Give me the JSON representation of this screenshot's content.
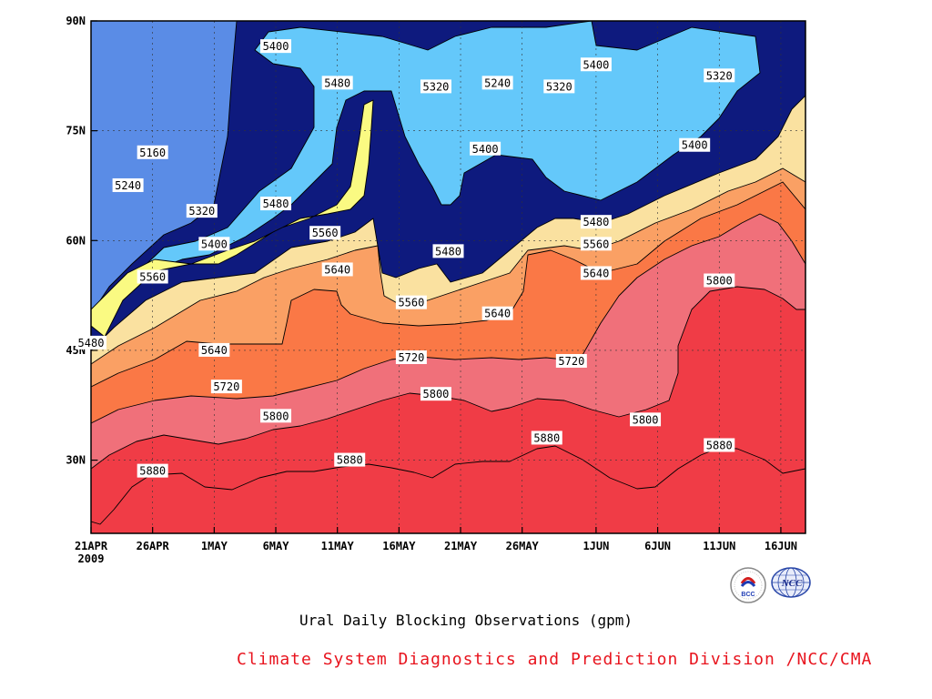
{
  "chart_data": {
    "type": "contour",
    "title": "Ural Daily Blocking Observations (gpm)",
    "credit": "Climate System Diagnostics and Prediction Division /NCC/CMA",
    "credit_color": "#e8141e",
    "x_axis": {
      "ticks": [
        "21APR",
        "26APR",
        "1MAY",
        "6MAY",
        "11MAY",
        "16MAY",
        "21MAY",
        "26MAY",
        "1JUN",
        "6JUN",
        "11JUN",
        "16JUN"
      ],
      "year_label": "2009",
      "start": "21APR 2009",
      "end": "18JUN 2009"
    },
    "y_axis": {
      "ticks": [
        "30N",
        "45N",
        "60N",
        "75N",
        "90N"
      ],
      "range": [
        "20N",
        "90N"
      ]
    },
    "grid": "dotted",
    "contour_levels": [
      5160,
      5240,
      5320,
      5400,
      5480,
      5560,
      5640,
      5720,
      5800,
      5880
    ],
    "fill_colors": {
      "<5160": "#0e1a7e",
      "5160-5240": "#1414e6",
      "5240-5320": "#4646e6",
      "5320-5400": "#5a8ce6",
      "5400-5480": "#64c8fa",
      "5480-5560": "#fafa82",
      "5560-5640": "#fae1a0",
      "5640-5720": "#faa064",
      "5720-5800": "#fa7846",
      "5800-5880": "#f0707a",
      ">5880": "#f03c46"
    },
    "contour_labels": [
      {
        "value": "5160",
        "date": "26APR",
        "lat": 72
      },
      {
        "value": "5240",
        "date": "24APR",
        "lat": 67.5
      },
      {
        "value": "5320",
        "date": "30APR",
        "lat": 64
      },
      {
        "value": "5400",
        "date": "1MAY",
        "lat": 59.5
      },
      {
        "value": "5480",
        "date": "6MAY",
        "lat": 65
      },
      {
        "value": "5560",
        "date": "10MAY",
        "lat": 61
      },
      {
        "value": "5640",
        "date": "11MAY",
        "lat": 56
      },
      {
        "value": "5560",
        "date": "26APR",
        "lat": 55
      },
      {
        "value": "5480",
        "date": "21APR",
        "lat": 46
      },
      {
        "value": "5640",
        "date": "1MAY",
        "lat": 45
      },
      {
        "value": "5720",
        "date": "2MAY",
        "lat": 40
      },
      {
        "value": "5800",
        "date": "6MAY",
        "lat": 36
      },
      {
        "value": "5880",
        "date": "26APR",
        "lat": 28.5
      },
      {
        "value": "5880",
        "date": "12MAY",
        "lat": 30
      },
      {
        "value": "5720",
        "date": "17MAY",
        "lat": 44
      },
      {
        "value": "5800",
        "date": "19MAY",
        "lat": 39
      },
      {
        "value": "5560",
        "date": "17MAY",
        "lat": 51.5
      },
      {
        "value": "5640",
        "date": "24MAY",
        "lat": 50
      },
      {
        "value": "5480",
        "date": "20MAY",
        "lat": 58.5
      },
      {
        "value": "5400",
        "date": "23MAY",
        "lat": 72.5
      },
      {
        "value": "5480",
        "date": "11MAY",
        "lat": 81.5
      },
      {
        "value": "5320",
        "date": "19MAY",
        "lat": 81
      },
      {
        "value": "5240",
        "date": "24MAY",
        "lat": 81.5
      },
      {
        "value": "5320",
        "date": "29MAY",
        "lat": 81
      },
      {
        "value": "5400",
        "date": "6MAY",
        "lat": 86.5
      },
      {
        "value": "5400",
        "date": "1JUN",
        "lat": 84
      },
      {
        "value": "5320",
        "date": "11JUN",
        "lat": 82.5
      },
      {
        "value": "5400",
        "date": "9JUN",
        "lat": 73
      },
      {
        "value": "5480",
        "date": "1JUN",
        "lat": 62.5
      },
      {
        "value": "5560",
        "date": "1JUN",
        "lat": 59.5
      },
      {
        "value": "5640",
        "date": "1JUN",
        "lat": 55.5
      },
      {
        "value": "5720",
        "date": "30MAY",
        "lat": 43.5
      },
      {
        "value": "5800",
        "date": "11JUN",
        "lat": 54.5
      },
      {
        "value": "5800",
        "date": "5JUN",
        "lat": 35.5
      },
      {
        "value": "5880",
        "date": "28MAY",
        "lat": 33
      },
      {
        "value": "5880",
        "date": "11JUN",
        "lat": 32
      }
    ]
  },
  "logos": {
    "bcc": {
      "name": "bcc-logo",
      "text": "BCC"
    },
    "ncc": {
      "name": "ncc-logo",
      "text": "NCC"
    }
  }
}
